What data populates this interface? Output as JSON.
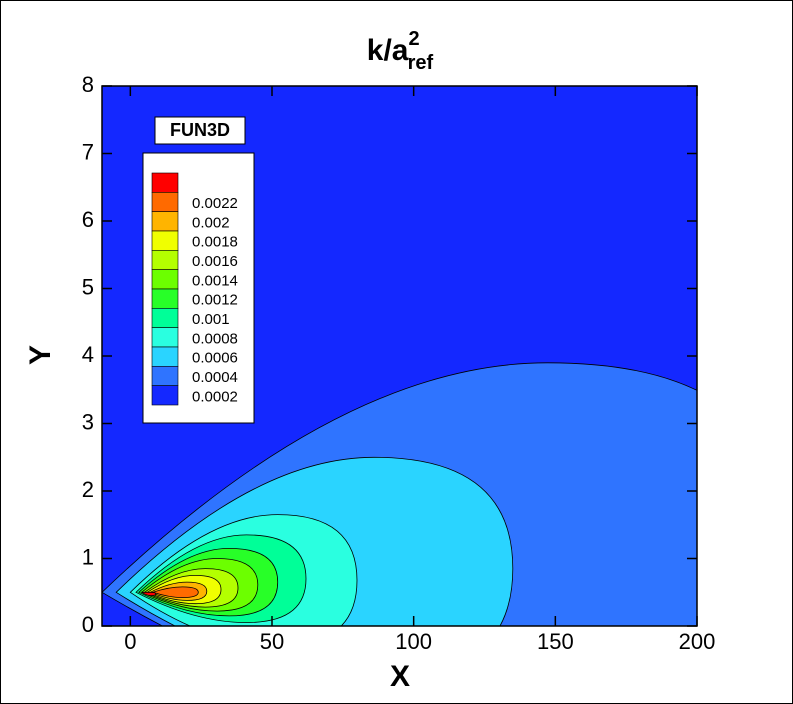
{
  "chart_data": {
    "type": "contour",
    "title": "k/a",
    "title_superscript": "2",
    "title_subscript": "ref",
    "xlabel": "X",
    "ylabel": "Y",
    "xlim": [
      -10,
      200
    ],
    "ylim": [
      0,
      8
    ],
    "xticks": [
      0,
      50,
      100,
      150,
      200
    ],
    "yticks": [
      0,
      1,
      2,
      3,
      4,
      5,
      6,
      7,
      8
    ],
    "legend_title": "FUN3D",
    "legend": "upper left",
    "levels": [
      0.0002,
      0.0004,
      0.0006,
      0.0008,
      0.001,
      0.0012,
      0.0014,
      0.0016,
      0.0018,
      0.002,
      0.0022
    ],
    "colors": [
      "#1428ff",
      "#2f74ff",
      "#2ad4ff",
      "#2affe0",
      "#00ff98",
      "#28ff28",
      "#6cff00",
      "#b4ff00",
      "#f0ff00",
      "#ffb400",
      "#ff6a00",
      "#ff0000"
    ]
  }
}
